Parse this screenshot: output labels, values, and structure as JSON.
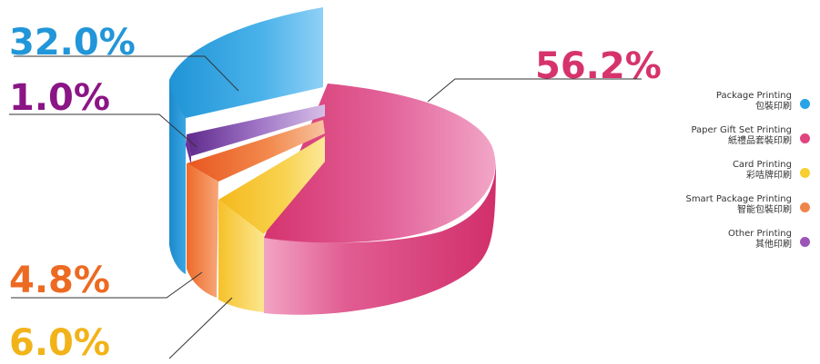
{
  "chart_data": {
    "type": "pie",
    "style": "3d-exploded",
    "series": [
      {
        "name": "Package Printing",
        "name_zh": "包裝印刷",
        "value": 32.0,
        "label": "32.0%",
        "color": "#2a9fe0"
      },
      {
        "name": "Paper Gift Set Printing",
        "name_zh": "紙禮品套裝印刷",
        "value": 56.2,
        "label": "56.2%",
        "color": "#d83a78"
      },
      {
        "name": "Card Printing",
        "name_zh": "彩咭牌印刷",
        "value": 6.0,
        "label": "6.0%",
        "color": "#f2b51e"
      },
      {
        "name": "Smart Package Printing",
        "name_zh": "智能包裝印刷",
        "value": 4.8,
        "label": "4.8%",
        "color": "#ee6a2a"
      },
      {
        "name": "Other Printing",
        "name_zh": "其他印刷",
        "value": 1.0,
        "label": "1.0%",
        "color": "#8a1a8a"
      }
    ],
    "label_colors": {
      "Package Printing": "#2196d8",
      "Paper Gift Set Printing": "#d6336c",
      "Card Printing": "#f2b319",
      "Smart Package Printing": "#ec6a22",
      "Other Printing": "#8b1585"
    },
    "legend_dot_colors": {
      "Package Printing": "#29a3e6",
      "Paper Gift Set Printing": "#e0457f",
      "Card Printing": "#f7cf2e",
      "Smart Package Printing": "#f0854a",
      "Other Printing": "#9a55b5"
    },
    "legend_position": "right"
  }
}
